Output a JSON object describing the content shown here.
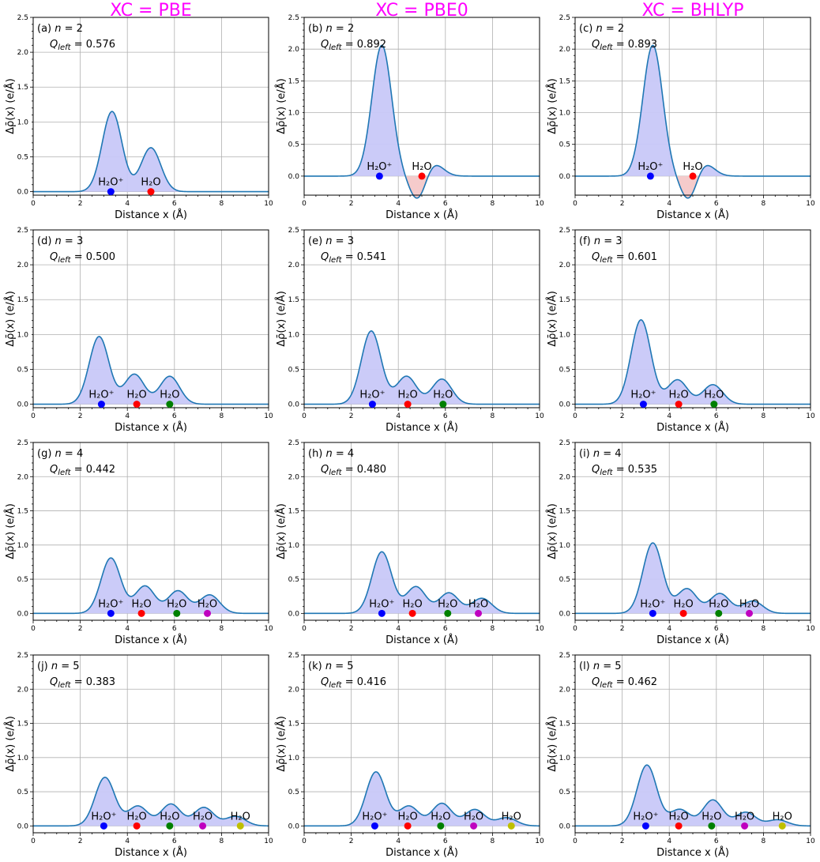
{
  "chart_data": {
    "type": "area",
    "column_titles": [
      "XC = PBE",
      "XC = PBE0",
      "XC = BHLYP"
    ],
    "xlabel": "Distance x (Å)",
    "ylabel": "Δρ̄(x) (e/Å)",
    "xlim": [
      0,
      10
    ],
    "x_ticks": [
      "0",
      "2",
      "4",
      "6",
      "8",
      "10"
    ],
    "y_ticks": [
      "0.0",
      "0.5",
      "1.0",
      "1.5",
      "2.0",
      "2.5"
    ],
    "grid": true,
    "colors": {
      "line": "#1f77b4",
      "fill_pos": "#c8c8f8",
      "fill_neg": "#f4c8c8",
      "mol": [
        "#0000ff",
        "#ff0000",
        "#008000",
        "#bf00bf",
        "#bfbf00"
      ],
      "title": "#ff00ff"
    },
    "panels": [
      {
        "label": "(a)",
        "n": 2,
        "q_label": "0.576",
        "ylim": [
          -0.05,
          2.5
        ],
        "peaks": [
          {
            "x": 3.35,
            "h": 1.15
          },
          {
            "x": 5.0,
            "h": 0.63
          }
        ],
        "molecules": [
          {
            "x": 3.3,
            "name": "H₂O⁺"
          },
          {
            "x": 5.0,
            "name": "H₂O"
          }
        ]
      },
      {
        "label": "(b)",
        "n": 2,
        "q_label": "0.892",
        "ylim": [
          -0.3,
          2.5
        ],
        "peaks": [
          {
            "x": 3.3,
            "h": 2.06
          },
          {
            "x": 5.45,
            "h": 0.22
          },
          {
            "x": 4.85,
            "h": -0.42,
            "w": 0.35
          }
        ],
        "molecules": [
          {
            "x": 3.2,
            "name": "H₂O⁺"
          },
          {
            "x": 5.0,
            "name": "H₂O"
          }
        ]
      },
      {
        "label": "(c)",
        "n": 2,
        "q_label": "0.893",
        "ylim": [
          -0.3,
          2.5
        ],
        "peaks": [
          {
            "x": 3.3,
            "h": 2.06
          },
          {
            "x": 5.45,
            "h": 0.22
          },
          {
            "x": 4.85,
            "h": -0.42,
            "w": 0.35
          }
        ],
        "molecules": [
          {
            "x": 3.2,
            "name": "H₂O⁺"
          },
          {
            "x": 5.0,
            "name": "H₂O"
          }
        ]
      },
      {
        "label": "(d)",
        "n": 3,
        "q_label": "0.500",
        "ylim": [
          -0.05,
          2.5
        ],
        "peaks": [
          {
            "x": 2.8,
            "h": 0.97
          },
          {
            "x": 4.3,
            "h": 0.43
          },
          {
            "x": 5.8,
            "h": 0.4
          }
        ],
        "molecules": [
          {
            "x": 2.9,
            "name": "H₂O⁺"
          },
          {
            "x": 4.4,
            "name": "H₂O"
          },
          {
            "x": 5.8,
            "name": "H₂O"
          }
        ]
      },
      {
        "label": "(e)",
        "n": 3,
        "q_label": "0.541",
        "ylim": [
          -0.05,
          2.5
        ],
        "peaks": [
          {
            "x": 2.85,
            "h": 1.05
          },
          {
            "x": 4.35,
            "h": 0.4
          },
          {
            "x": 5.85,
            "h": 0.36
          }
        ],
        "molecules": [
          {
            "x": 2.9,
            "name": "H₂O⁺"
          },
          {
            "x": 4.4,
            "name": "H₂O"
          },
          {
            "x": 5.9,
            "name": "H₂O"
          }
        ]
      },
      {
        "label": "(f)",
        "n": 3,
        "q_label": "0.601",
        "ylim": [
          -0.05,
          2.5
        ],
        "peaks": [
          {
            "x": 2.8,
            "h": 1.21
          },
          {
            "x": 4.35,
            "h": 0.35
          },
          {
            "x": 5.85,
            "h": 0.28
          }
        ],
        "molecules": [
          {
            "x": 2.9,
            "name": "H₂O⁺"
          },
          {
            "x": 4.4,
            "name": "H₂O"
          },
          {
            "x": 5.9,
            "name": "H₂O"
          }
        ]
      },
      {
        "label": "(g)",
        "n": 4,
        "q_label": "0.442",
        "ylim": [
          -0.1,
          2.5
        ],
        "peaks": [
          {
            "x": 3.3,
            "h": 0.81
          },
          {
            "x": 4.75,
            "h": 0.4
          },
          {
            "x": 6.15,
            "h": 0.33
          },
          {
            "x": 7.5,
            "h": 0.27
          }
        ],
        "molecules": [
          {
            "x": 3.3,
            "name": "H₂O⁺"
          },
          {
            "x": 4.6,
            "name": "H₂O"
          },
          {
            "x": 6.1,
            "name": "H₂O"
          },
          {
            "x": 7.4,
            "name": "H₂O"
          }
        ]
      },
      {
        "label": "(h)",
        "n": 4,
        "q_label": "0.480",
        "ylim": [
          -0.1,
          2.5
        ],
        "peaks": [
          {
            "x": 3.3,
            "h": 0.9
          },
          {
            "x": 4.75,
            "h": 0.39
          },
          {
            "x": 6.15,
            "h": 0.3
          },
          {
            "x": 7.55,
            "h": 0.22
          }
        ],
        "molecules": [
          {
            "x": 3.3,
            "name": "H₂O⁺"
          },
          {
            "x": 4.6,
            "name": "H₂O"
          },
          {
            "x": 6.1,
            "name": "H₂O"
          },
          {
            "x": 7.4,
            "name": "H₂O"
          }
        ]
      },
      {
        "label": "(i)",
        "n": 4,
        "q_label": "0.535",
        "ylim": [
          -0.1,
          2.5
        ],
        "peaks": [
          {
            "x": 3.3,
            "h": 1.03
          },
          {
            "x": 4.75,
            "h": 0.36
          },
          {
            "x": 6.15,
            "h": 0.29
          },
          {
            "x": 7.55,
            "h": 0.18
          }
        ],
        "molecules": [
          {
            "x": 3.3,
            "name": "H₂O⁺"
          },
          {
            "x": 4.6,
            "name": "H₂O"
          },
          {
            "x": 6.1,
            "name": "H₂O"
          },
          {
            "x": 7.4,
            "name": "H₂O"
          }
        ]
      },
      {
        "label": "(j)",
        "n": 5,
        "q_label": "0.383",
        "ylim": [
          -0.1,
          2.5
        ],
        "peaks": [
          {
            "x": 3.05,
            "h": 0.71
          },
          {
            "x": 4.45,
            "h": 0.29
          },
          {
            "x": 5.85,
            "h": 0.32
          },
          {
            "x": 7.25,
            "h": 0.27
          },
          {
            "x": 8.6,
            "h": 0.14
          }
        ],
        "molecules": [
          {
            "x": 3.0,
            "name": "H₂O⁺"
          },
          {
            "x": 4.4,
            "name": "H₂O"
          },
          {
            "x": 5.8,
            "name": "H₂O"
          },
          {
            "x": 7.2,
            "name": "H₂O"
          },
          {
            "x": 8.8,
            "name": "H₂O"
          }
        ]
      },
      {
        "label": "(k)",
        "n": 5,
        "q_label": "0.416",
        "ylim": [
          -0.1,
          2.5
        ],
        "peaks": [
          {
            "x": 3.05,
            "h": 0.79
          },
          {
            "x": 4.45,
            "h": 0.29
          },
          {
            "x": 5.85,
            "h": 0.33
          },
          {
            "x": 7.25,
            "h": 0.24
          },
          {
            "x": 8.6,
            "h": 0.12
          }
        ],
        "molecules": [
          {
            "x": 3.0,
            "name": "H₂O⁺"
          },
          {
            "x": 4.4,
            "name": "H₂O"
          },
          {
            "x": 5.8,
            "name": "H₂O"
          },
          {
            "x": 7.2,
            "name": "H₂O"
          },
          {
            "x": 8.8,
            "name": "H₂O"
          }
        ]
      },
      {
        "label": "(l)",
        "n": 5,
        "q_label": "0.462",
        "ylim": [
          -0.1,
          2.5
        ],
        "peaks": [
          {
            "x": 3.05,
            "h": 0.89
          },
          {
            "x": 4.45,
            "h": 0.24
          },
          {
            "x": 5.85,
            "h": 0.38
          },
          {
            "x": 7.25,
            "h": 0.2
          },
          {
            "x": 8.6,
            "h": 0.09
          }
        ],
        "molecules": [
          {
            "x": 3.0,
            "name": "H₂O⁺"
          },
          {
            "x": 4.4,
            "name": "H₂O"
          },
          {
            "x": 5.8,
            "name": "H₂O"
          },
          {
            "x": 7.2,
            "name": "H₂O"
          },
          {
            "x": 8.8,
            "name": "H₂O"
          }
        ]
      }
    ]
  }
}
